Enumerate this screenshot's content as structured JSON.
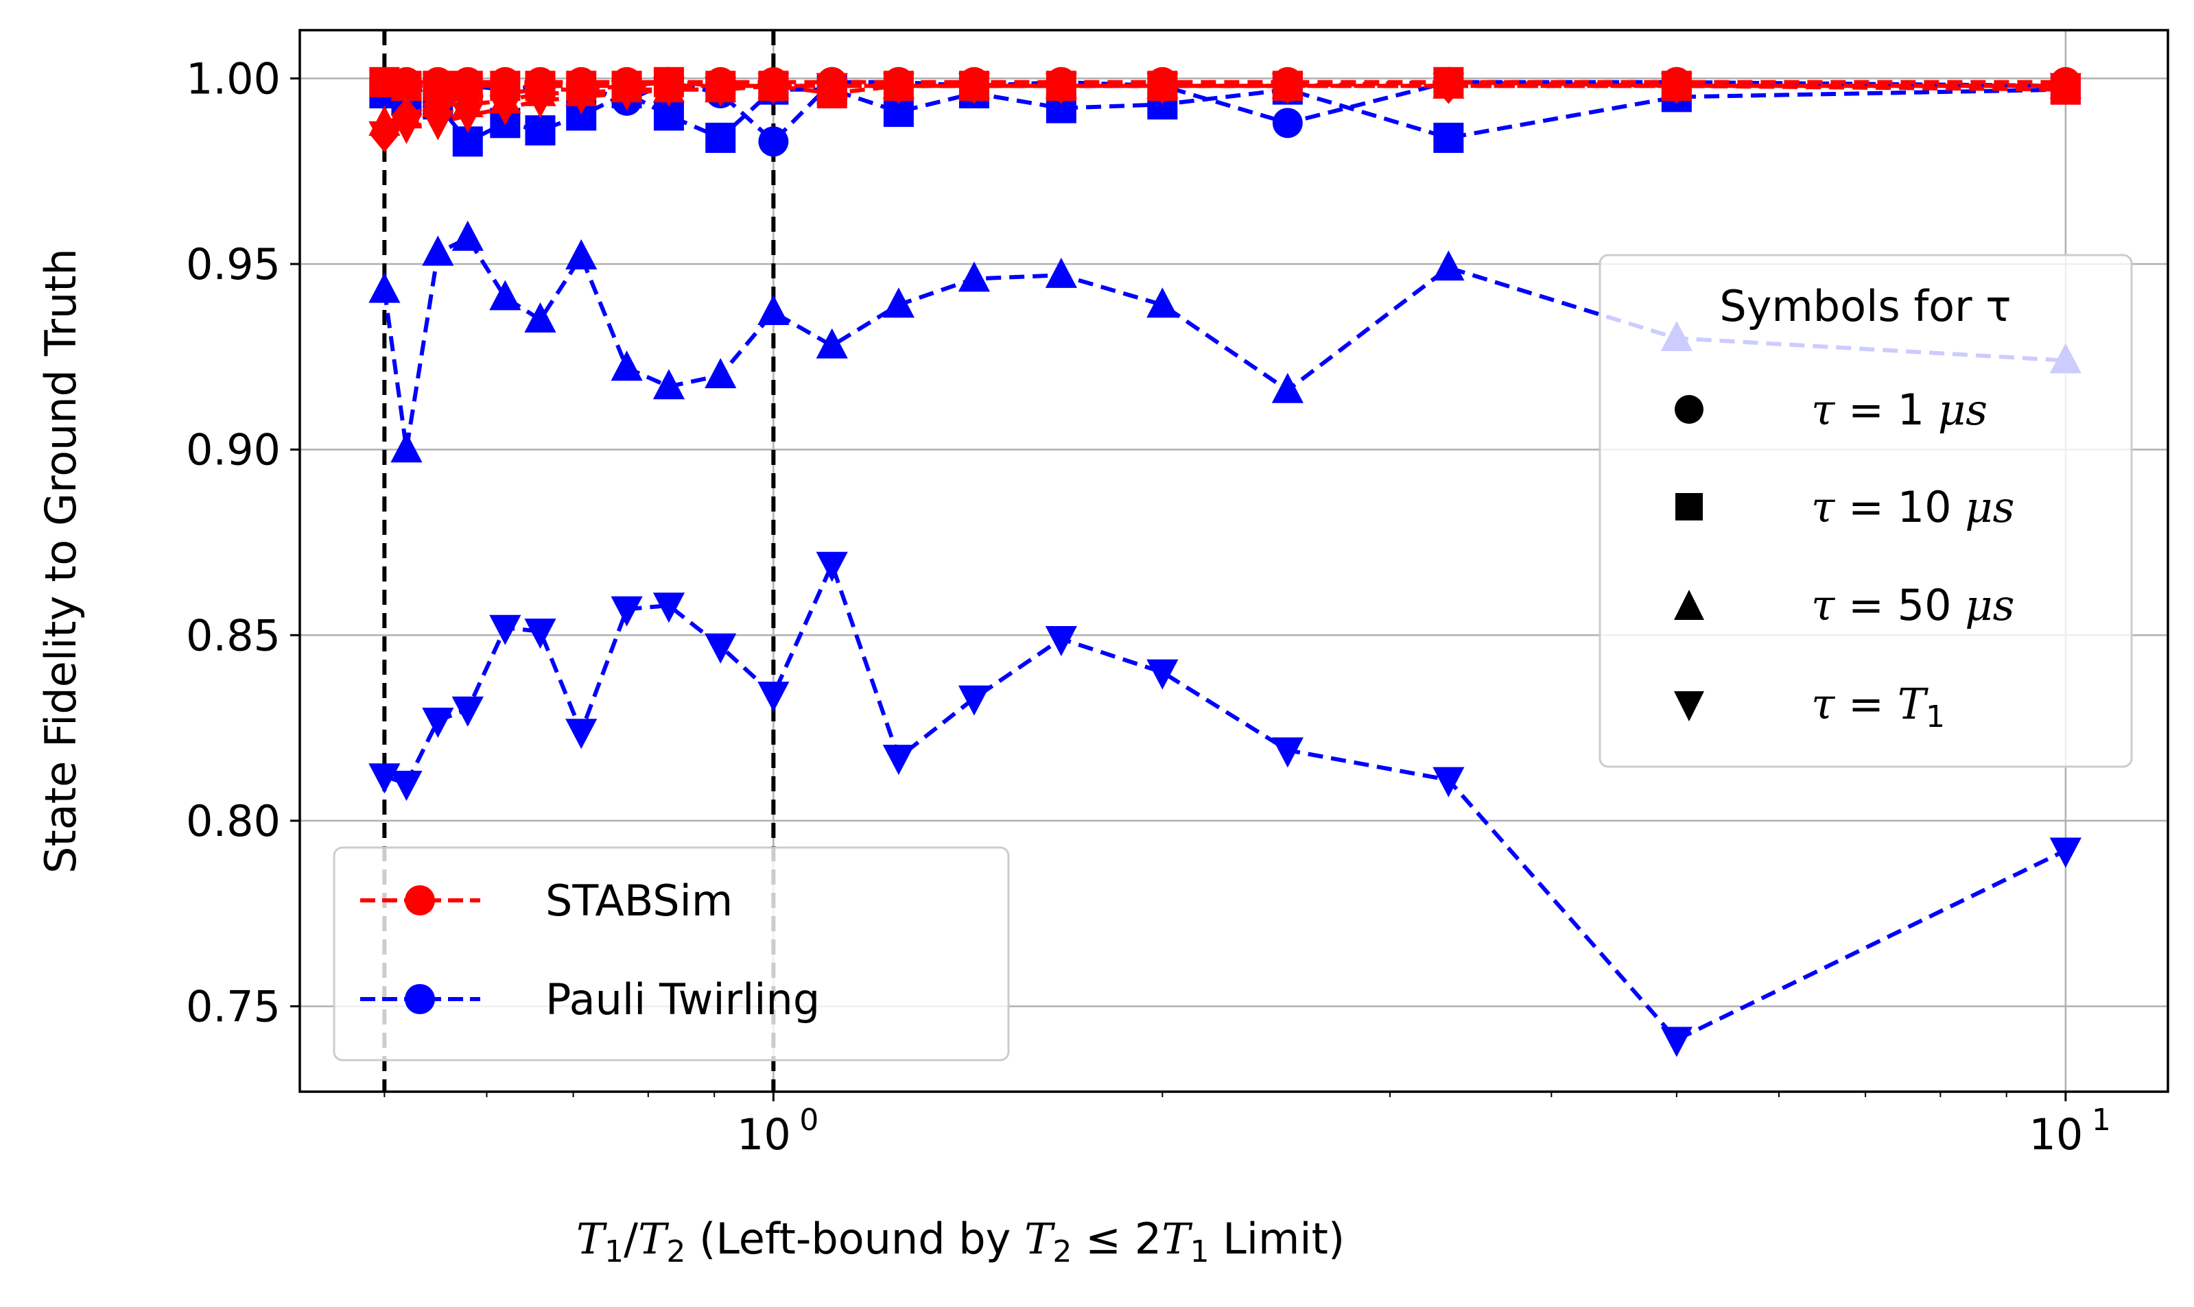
{
  "chart_data": {
    "type": "line",
    "x_scale": "log",
    "xlim": [
      0.43,
      12.0
    ],
    "ylim": [
      0.727,
      1.013
    ],
    "grid": true,
    "x": [
      0.5,
      0.52,
      0.55,
      0.58,
      0.62,
      0.66,
      0.71,
      0.77,
      0.83,
      0.91,
      1.0,
      1.11,
      1.25,
      1.43,
      1.67,
      2.0,
      2.5,
      3.33,
      5.0,
      10.0
    ],
    "xticks": [
      {
        "value": 1,
        "label": "10",
        "exp": "0"
      },
      {
        "value": 10,
        "label": "10",
        "exp": "1"
      }
    ],
    "yticks": [
      "0.75",
      "0.80",
      "0.85",
      "0.90",
      "0.95",
      "1.00"
    ],
    "ytick_values": [
      0.75,
      0.8,
      0.85,
      0.9,
      0.95,
      1.0
    ],
    "vlines": [
      0.5,
      1.0
    ],
    "xlabel": {
      "t1": "T",
      "s1": "1",
      "slash": "/",
      "t2": "T",
      "s2": "2",
      "text": " (Left-bound by ",
      "t3": "T",
      "s3": "2",
      "le": " ≤ 2",
      "t4": "T",
      "s4": "1",
      "end": " Limit)"
    },
    "ylabel": "State Fidelity to Ground Truth",
    "method_legend": {
      "placement": "lower-left",
      "entries": [
        {
          "label": "STABSim",
          "color": "#ff0000"
        },
        {
          "label": "Pauli Twirling",
          "color": "#0000ff"
        }
      ]
    },
    "symbol_legend": {
      "placement": "center-right",
      "title": "Symbols for τ",
      "entries": [
        {
          "marker": "circle",
          "tau": "τ",
          "eq": " = 1 ",
          "unit": "μs"
        },
        {
          "marker": "square",
          "tau": "τ",
          "eq": " = 10 ",
          "unit": "μs"
        },
        {
          "marker": "triangle-up",
          "tau": "τ",
          "eq": " = 50 ",
          "unit": "μs"
        },
        {
          "marker": "triangle-down",
          "tau": "τ",
          "eq": " = ",
          "unit": "T",
          "sub": "1"
        }
      ]
    },
    "series": [
      {
        "method": "Pauli Twirling",
        "tau": "1 μs",
        "color": "#0000ff",
        "marker": "circle",
        "values": [
          0.997,
          0.996,
          0.998,
          0.998,
          0.997,
          0.998,
          0.998,
          0.994,
          0.999,
          0.996,
          0.983,
          0.999,
          0.999,
          0.998,
          0.999,
          0.998,
          0.988,
          0.999,
          0.999,
          0.998
        ]
      },
      {
        "method": "Pauli Twirling",
        "tau": "10 μs",
        "color": "#0000ff",
        "marker": "square",
        "values": [
          0.996,
          0.994,
          0.993,
          0.983,
          0.988,
          0.986,
          0.99,
          0.996,
          0.99,
          0.984,
          0.997,
          0.997,
          0.991,
          0.996,
          0.992,
          0.993,
          0.997,
          0.984,
          0.995,
          0.997
        ]
      },
      {
        "method": "Pauli Twirling",
        "tau": "50 μs",
        "color": "#0000ff",
        "marker": "triangle-up",
        "values": [
          0.943,
          0.9,
          0.953,
          0.957,
          0.941,
          0.935,
          0.952,
          0.922,
          0.917,
          0.92,
          0.937,
          0.928,
          0.939,
          0.946,
          0.947,
          0.939,
          0.916,
          0.949,
          0.93,
          0.924
        ]
      },
      {
        "method": "Pauli Twirling",
        "tau": "T1",
        "color": "#0000ff",
        "marker": "triangle-down",
        "values": [
          0.812,
          0.81,
          0.827,
          0.83,
          0.852,
          0.851,
          0.824,
          0.857,
          0.858,
          0.847,
          0.834,
          0.869,
          0.817,
          0.833,
          0.849,
          0.84,
          0.819,
          0.811,
          0.741,
          0.792
        ]
      },
      {
        "method": "STABSim",
        "tau": "1 μs",
        "color": "#ff0000",
        "marker": "circle",
        "values": [
          0.999,
          0.999,
          0.999,
          0.999,
          0.999,
          0.999,
          0.999,
          0.999,
          0.999,
          0.999,
          0.999,
          0.999,
          0.999,
          0.999,
          0.999,
          0.999,
          0.999,
          0.999,
          0.999,
          0.999
        ]
      },
      {
        "method": "STABSim",
        "tau": "10 μs",
        "color": "#ff0000",
        "marker": "square",
        "values": [
          0.999,
          0.998,
          0.998,
          0.998,
          0.998,
          0.998,
          0.998,
          0.998,
          0.999,
          0.998,
          0.998,
          0.996,
          0.998,
          0.998,
          0.998,
          0.998,
          0.998,
          0.999,
          0.998,
          0.997
        ]
      },
      {
        "method": "STABSim",
        "tau": "50 μs",
        "color": "#ff0000",
        "marker": "triangle-up",
        "values": [
          0.988,
          0.99,
          0.993,
          0.993,
          0.994,
          0.996,
          0.996,
          0.997,
          0.997,
          0.997,
          0.998,
          0.998,
          0.998,
          0.998,
          0.998,
          0.998,
          0.998,
          0.998,
          0.998,
          0.998
        ]
      },
      {
        "method": "STABSim",
        "tau": "T1",
        "color": "#ff0000",
        "marker": "triangle-down",
        "values": [
          0.985,
          0.987,
          0.988,
          0.99,
          0.992,
          0.994,
          0.995,
          0.996,
          0.997,
          0.997,
          0.998,
          0.998,
          0.998,
          0.998,
          0.998,
          0.998,
          0.998,
          0.998,
          0.998,
          0.998
        ]
      },
      {
        "method": "STABSim",
        "tau": "T1",
        "color": "#ff0000",
        "marker": "diamond",
        "values": [
          0.985,
          0.99,
          0.993,
          0.995,
          0.996,
          0.997,
          0.997,
          0.998,
          0.998,
          0.998,
          0.998,
          0.998,
          0.998,
          0.998,
          0.998,
          0.998,
          0.998,
          0.998,
          0.998,
          0.998
        ]
      }
    ]
  }
}
